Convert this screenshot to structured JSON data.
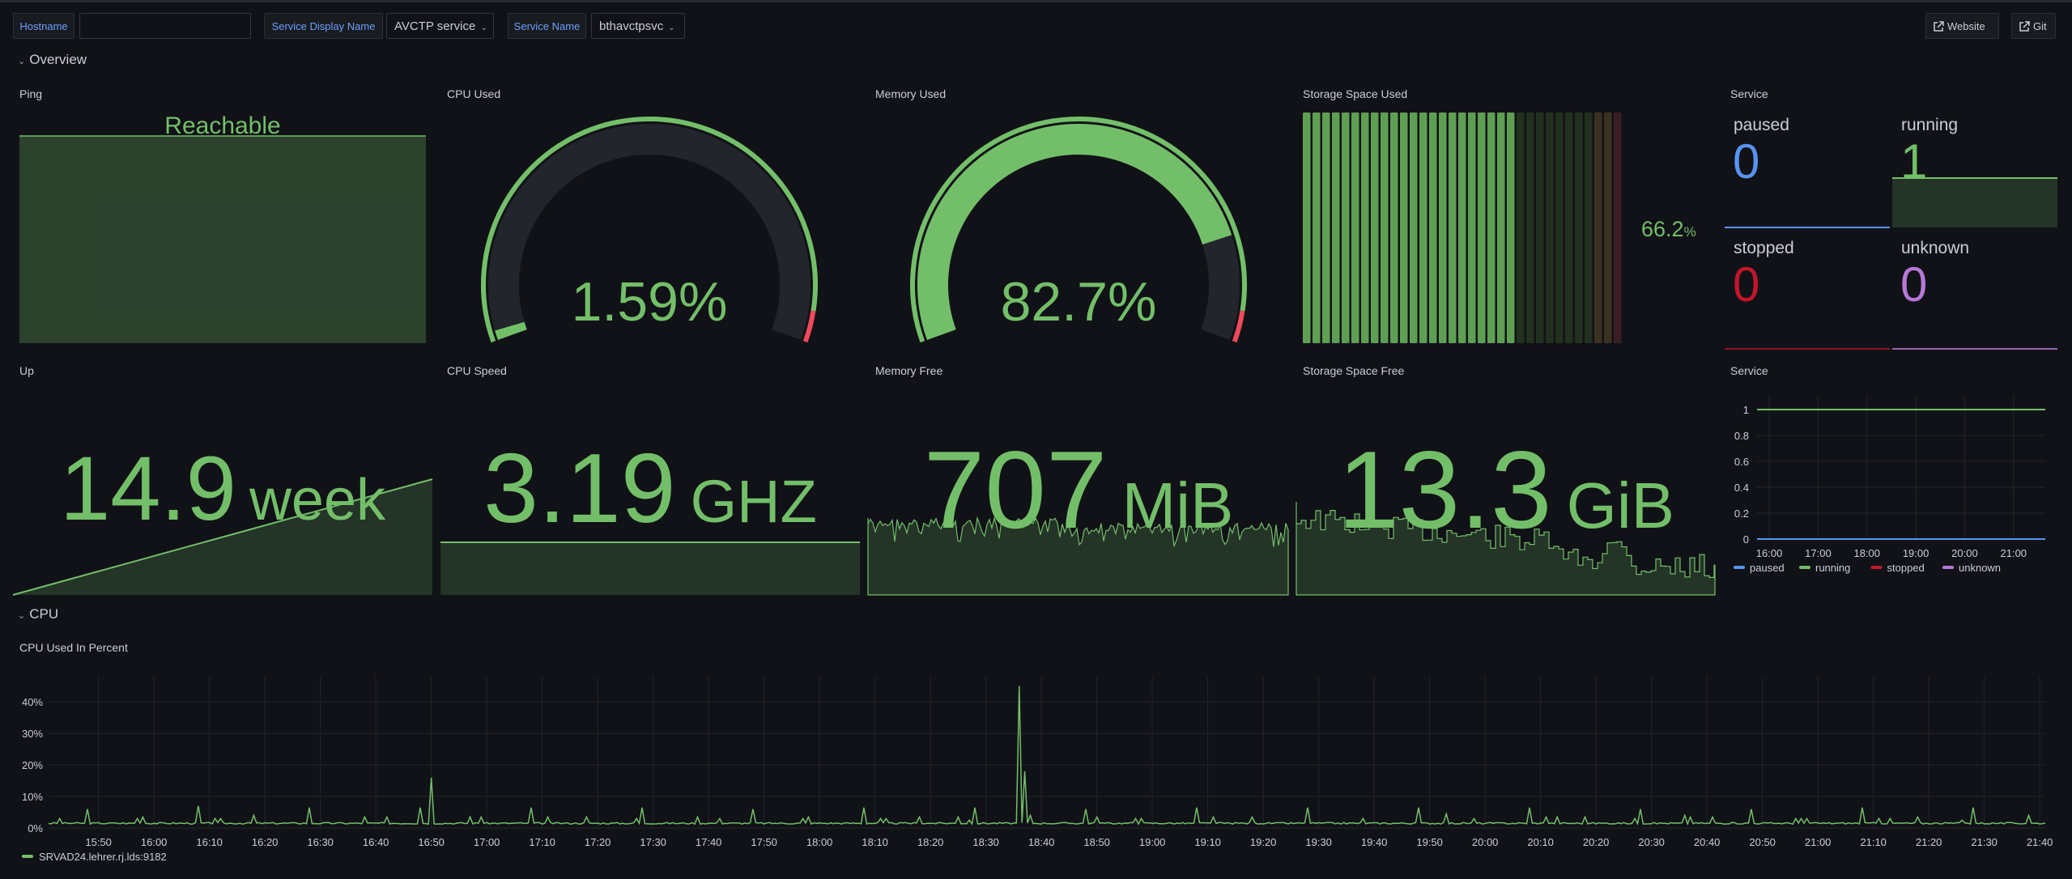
{
  "toolbar": {
    "hostname_label": "Hostname",
    "hostname_value": "",
    "service_display_name_label": "Service Display Name",
    "service_display_name_value": "AVCTP service",
    "service_name_label": "Service Name",
    "service_name_value": "bthavctpsvc",
    "website_label": "Website",
    "git_label": "Git"
  },
  "rows": {
    "overview": "Overview",
    "cpu": "CPU"
  },
  "colors": {
    "green": "#73bf69",
    "blue": "#5794f2",
    "red": "#c4162a",
    "purple": "#b877d9",
    "threshold_red": "#f2495c"
  },
  "panels": {
    "ping": {
      "title": "Ping",
      "value": "Reachable"
    },
    "cpu_used": {
      "title": "CPU Used",
      "value": "1.59%",
      "percent": 1.59,
      "threshold": 95
    },
    "memory_used": {
      "title": "Memory Used",
      "value": "82.7%",
      "percent": 82.7,
      "threshold": 95
    },
    "storage_used": {
      "title": "Storage Space Used",
      "value": "66.2",
      "unit": "%",
      "percent": 66.2,
      "segments": 33
    },
    "service_stat": {
      "title": "Service",
      "items": [
        {
          "label": "paused",
          "value": "0",
          "color": "#5794f2"
        },
        {
          "label": "running",
          "value": "1",
          "color": "#73bf69"
        },
        {
          "label": "stopped",
          "value": "0",
          "color": "#c4162a"
        },
        {
          "label": "unknown",
          "value": "0",
          "color": "#b877d9"
        }
      ]
    },
    "up": {
      "title": "Up",
      "value": "14.9",
      "unit": "week"
    },
    "cpu_speed": {
      "title": "CPU Speed",
      "value": "3.19",
      "unit": "GHZ"
    },
    "memory_free": {
      "title": "Memory Free",
      "value": "707",
      "unit": "MiB"
    },
    "storage_free": {
      "title": "Storage Space Free",
      "value": "13.3",
      "unit": "GiB"
    },
    "cpu_percent": {
      "title": "CPU Used In Percent"
    }
  },
  "chart_data": [
    {
      "type": "line",
      "title": "Service",
      "x_ticks": [
        "16:00",
        "17:00",
        "18:00",
        "19:00",
        "20:00",
        "21:00"
      ],
      "y_ticks": [
        "0",
        "0.2",
        "0.4",
        "0.6",
        "0.8",
        "1"
      ],
      "ylim": [
        0,
        1
      ],
      "xlim": [
        "15:45",
        "21:39"
      ],
      "series": [
        {
          "name": "paused",
          "value": 0,
          "color": "#5794f2"
        },
        {
          "name": "running",
          "value": 1,
          "color": "#73bf69"
        },
        {
          "name": "stopped",
          "value": 0,
          "color": "#c4162a"
        },
        {
          "name": "unknown",
          "value": 0,
          "color": "#b877d9"
        }
      ],
      "legend": "bottom"
    },
    {
      "type": "line",
      "title": "CPU Used In Percent",
      "ylabel": "",
      "ylim": [
        0,
        48
      ],
      "xlim": [
        "15:41",
        "21:41"
      ],
      "y_ticks": [
        "0%",
        "10%",
        "20%",
        "30%",
        "40%"
      ],
      "x_ticks": [
        "15:50",
        "16:00",
        "16:10",
        "16:20",
        "16:30",
        "16:40",
        "16:50",
        "17:00",
        "17:10",
        "17:20",
        "17:30",
        "17:40",
        "17:50",
        "18:00",
        "18:10",
        "18:20",
        "18:30",
        "18:40",
        "18:50",
        "19:00",
        "19:10",
        "19:20",
        "19:30",
        "19:40",
        "19:50",
        "20:00",
        "20:10",
        "20:20",
        "20:30",
        "20:40",
        "20:50",
        "21:00",
        "21:10",
        "21:20",
        "21:30",
        "21:40"
      ],
      "series": [
        {
          "name": "SRVAD24.lehrer.rj.lds:9182",
          "color": "#73bf69",
          "baseline": 1.5,
          "peaks": [
            [
              "15:43",
              3
            ],
            [
              "15:48",
              6
            ],
            [
              "15:57",
              3
            ],
            [
              "15:58",
              3.5
            ],
            [
              "16:08",
              7
            ],
            [
              "16:11",
              3
            ],
            [
              "16:12",
              3
            ],
            [
              "16:18",
              4
            ],
            [
              "16:28",
              6.5
            ],
            [
              "16:38",
              3.5
            ],
            [
              "16:42",
              3.5
            ],
            [
              "16:48",
              6.5
            ],
            [
              "16:50",
              16
            ],
            [
              "16:57",
              3.5
            ],
            [
              "16:59",
              3.5
            ],
            [
              "17:08",
              6.5
            ],
            [
              "17:11",
              3.5
            ],
            [
              "17:18",
              3.5
            ],
            [
              "17:27",
              3
            ],
            [
              "17:28",
              6.5
            ],
            [
              "17:38",
              3.5
            ],
            [
              "17:42",
              3
            ],
            [
              "17:48",
              6
            ],
            [
              "17:57",
              3
            ],
            [
              "17:58",
              3.5
            ],
            [
              "18:08",
              6.5
            ],
            [
              "18:11",
              3
            ],
            [
              "18:12",
              3
            ],
            [
              "18:18",
              3.5
            ],
            [
              "18:25",
              3.5
            ],
            [
              "18:27",
              2.5
            ],
            [
              "18:28",
              6.5
            ],
            [
              "18:36",
              45
            ],
            [
              "18:37",
              18
            ],
            [
              "18:38",
              4
            ],
            [
              "18:48",
              6
            ],
            [
              "18:50",
              3.5
            ],
            [
              "18:57",
              3
            ],
            [
              "18:58",
              3
            ],
            [
              "19:08",
              6.5
            ],
            [
              "19:11",
              3.5
            ],
            [
              "19:18",
              3.5
            ],
            [
              "19:28",
              6.5
            ],
            [
              "19:38",
              3
            ],
            [
              "19:48",
              6.5
            ],
            [
              "19:53",
              4.5
            ],
            [
              "19:58",
              3
            ],
            [
              "20:08",
              6.5
            ],
            [
              "20:11",
              3.5
            ],
            [
              "20:13",
              3.5
            ],
            [
              "20:18",
              3.5
            ],
            [
              "20:27",
              3
            ],
            [
              "20:28",
              6
            ],
            [
              "20:36",
              4
            ],
            [
              "20:37",
              3.5
            ],
            [
              "20:41",
              3.5
            ],
            [
              "20:48",
              6
            ],
            [
              "20:56",
              3
            ],
            [
              "20:57",
              3
            ],
            [
              "20:58",
              3
            ],
            [
              "21:08",
              6.5
            ],
            [
              "21:11",
              3
            ],
            [
              "21:13",
              3
            ],
            [
              "21:18",
              3.5
            ],
            [
              "21:26",
              2.5
            ],
            [
              "21:28",
              6.5
            ],
            [
              "21:38",
              4
            ]
          ]
        }
      ],
      "legend": "bottom-left"
    }
  ]
}
